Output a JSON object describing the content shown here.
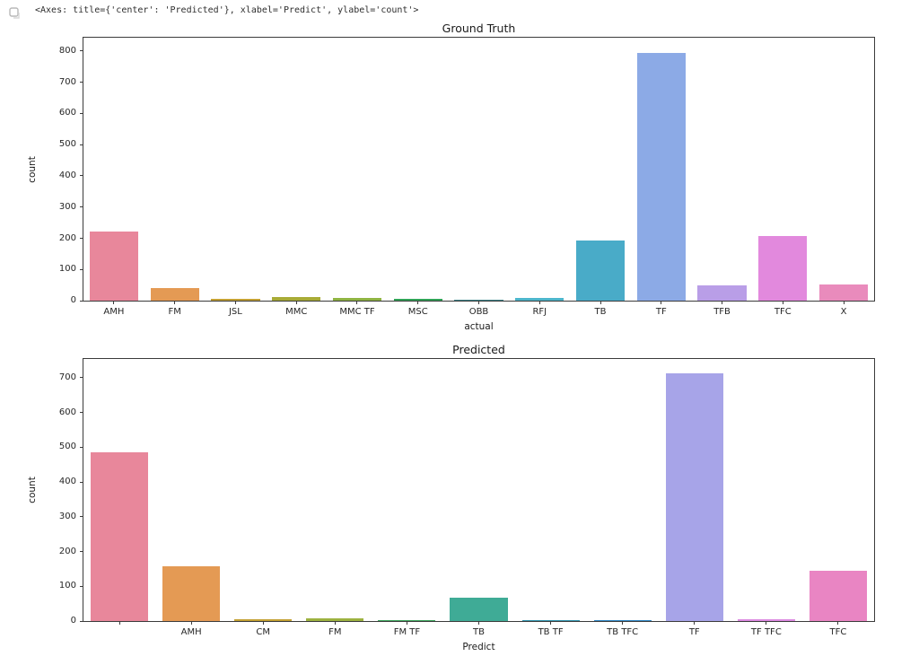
{
  "header": {
    "output_text": "<Axes: title={'center': 'Predicted'}, xlabel='Predict', ylabel='count'>"
  },
  "icons": {
    "cell_output_icon": "cell-output-icon"
  },
  "chart_data": [
    {
      "type": "bar",
      "title": "Ground Truth",
      "xlabel": "actual",
      "ylabel": "count",
      "categories": [
        "AMH",
        "FM",
        "JSL",
        "MMC",
        "MMC TF",
        "MSC",
        "OBB",
        "RFJ",
        "TB",
        "TF",
        "TFB",
        "TFC",
        "X"
      ],
      "values": [
        222,
        40,
        6,
        11,
        8,
        5,
        2,
        8,
        192,
        795,
        50,
        207,
        52
      ],
      "colors": [
        "#e8879b",
        "#e49a54",
        "#c4a134",
        "#a8ab36",
        "#8fb442",
        "#2fa356",
        "#3b8086",
        "#4cb6cc",
        "#49abc8",
        "#8caae6",
        "#b99ee7",
        "#e289dd",
        "#e98bbc"
      ],
      "yticks": [
        0,
        100,
        200,
        300,
        400,
        500,
        600,
        700,
        800
      ],
      "ylim": [
        0,
        843
      ],
      "grid": false,
      "legend": null
    },
    {
      "type": "bar",
      "title": "Predicted",
      "xlabel": "Predict",
      "ylabel": "count",
      "categories": [
        "",
        "AMH",
        "CM",
        "FM",
        "FM TF",
        "TB",
        "TB TF",
        "TB TFC",
        "TF",
        "TF TFC",
        "TFC"
      ],
      "values": [
        485,
        157,
        6,
        8,
        2,
        67,
        3,
        3,
        712,
        5,
        145
      ],
      "colors": [
        "#e8879b",
        "#e49a54",
        "#c4a134",
        "#9db240",
        "#3da45c",
        "#3fab96",
        "#3193ad",
        "#2f86c4",
        "#a7a4e8",
        "#dd8ce2",
        "#e985c3"
      ],
      "yticks": [
        0,
        100,
        200,
        300,
        400,
        500,
        600,
        700
      ],
      "ylim": [
        0,
        754
      ],
      "grid": false,
      "legend": null
    }
  ]
}
